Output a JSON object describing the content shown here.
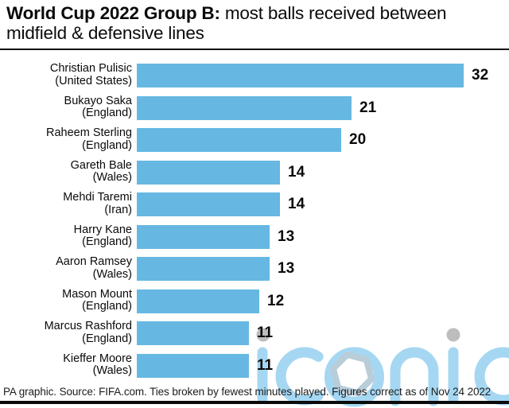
{
  "title": {
    "bold": "World Cup 2022 Group B:",
    "regular": " most balls received between midfield & defensive lines"
  },
  "chart_data": {
    "type": "bar",
    "orientation": "horizontal",
    "title": "World Cup 2022 Group B: most balls received between midfield & defensive lines",
    "categories": [
      "Christian Pulisic (United States)",
      "Bukayo Saka (England)",
      "Raheem Sterling (England)",
      "Gareth Bale (Wales)",
      "Mehdi Taremi (Iran)",
      "Harry Kane (England)",
      "Aaron Ramsey (Wales)",
      "Mason Mount (England)",
      "Marcus Rashford (England)",
      "Kieffer Moore (Wales)"
    ],
    "values": [
      32,
      21,
      20,
      14,
      14,
      13,
      13,
      12,
      11,
      11
    ],
    "players": [
      {
        "name": "Christian Pulisic",
        "team": "(United States)",
        "value": "32"
      },
      {
        "name": "Bukayo Saka",
        "team": "(England)",
        "value": "21"
      },
      {
        "name": "Raheem Sterling",
        "team": "(England)",
        "value": "20"
      },
      {
        "name": "Gareth Bale",
        "team": "(Wales)",
        "value": "14"
      },
      {
        "name": "Mehdi Taremi",
        "team": "(Iran)",
        "value": "14"
      },
      {
        "name": "Harry Kane",
        "team": "(England)",
        "value": "13"
      },
      {
        "name": "Aaron Ramsey",
        "team": "(Wales)",
        "value": "13"
      },
      {
        "name": "Mason Mount",
        "team": "(England)",
        "value": "12"
      },
      {
        "name": "Marcus Rashford",
        "team": "(England)",
        "value": "11"
      },
      {
        "name": "Kieffer Moore",
        "team": "(Wales)",
        "value": "11"
      }
    ],
    "xlim": [
      0,
      32
    ],
    "grid": false,
    "legend": false,
    "value_labels_shown": true
  },
  "footer": {
    "source_line": "PA graphic. Source: FIFA.com. Ties broken by fewest minutes played. Figures correct as of Nov 24 2022"
  },
  "watermark": {
    "text": "iconic"
  },
  "colors": {
    "bar": "#66b8e2",
    "text": "#0a0a0a",
    "watermark_blue": "#a5d7f2",
    "watermark_hexagon": "#b9cdd9",
    "watermark_dot": "#bdbdbd",
    "rule": "#0a0a0a",
    "background": "#ffffff"
  }
}
